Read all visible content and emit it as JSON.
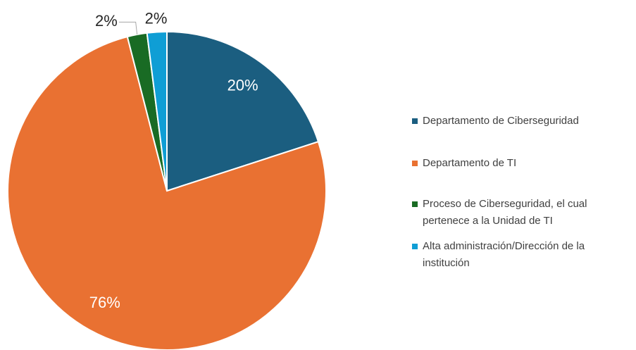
{
  "chart_data": {
    "type": "pie",
    "categories": [
      "Departamento de Ciberseguridad",
      "Departamento de TI",
      "Proceso de Ciberseguridad, el cual pertenece a la Unidad de TI",
      "Alta administración/Dirección de la institución"
    ],
    "values": [
      20,
      76,
      2,
      2
    ],
    "value_labels": [
      "20%",
      "76%",
      "2%",
      "2%"
    ],
    "colors": [
      "#1b5e80",
      "#e97132",
      "#196b24",
      "#0f9ed5"
    ],
    "legend": "right"
  }
}
